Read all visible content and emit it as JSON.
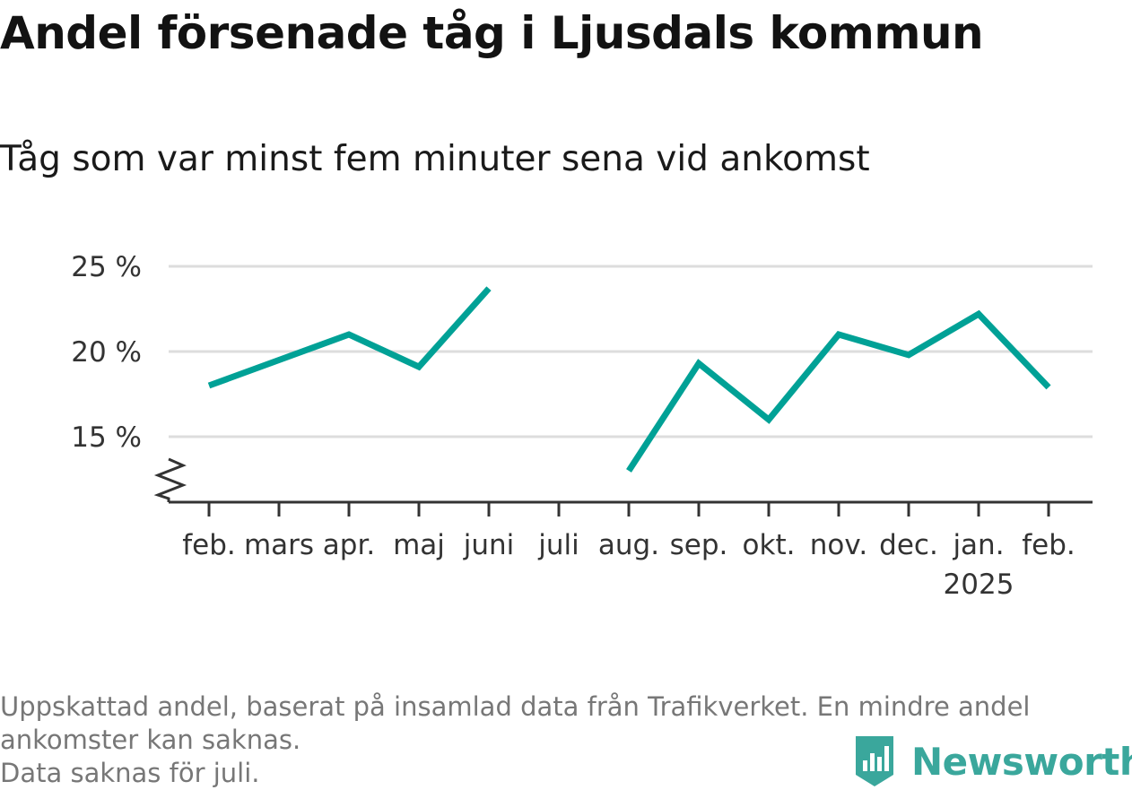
{
  "header": {
    "title": "Andel försenade tåg i Ljusdals kommun",
    "subtitle": "Tåg som var minst fem minuter sena vid ankomst"
  },
  "chart_data": {
    "type": "line",
    "title": "Andel försenade tåg i Ljusdals kommun",
    "subtitle": "Tåg som var minst fem minuter sena vid ankomst",
    "categories": [
      "feb.",
      "mars",
      "apr.",
      "maj",
      "juni",
      "juli",
      "aug.",
      "sep.",
      "okt.",
      "nov.",
      "dec.",
      "jan.",
      "feb."
    ],
    "category_sublabels": [
      "",
      "",
      "",
      "",
      "",
      "",
      "",
      "",
      "",
      "",
      "",
      "2025",
      ""
    ],
    "series": [
      {
        "values": [
          18.0,
          19.5,
          21.0,
          19.1,
          23.7,
          null,
          13.0,
          19.3,
          16.0,
          21.0,
          19.8,
          22.2,
          17.9
        ],
        "color": "#00a196"
      }
    ],
    "ylim": [
      12,
      25
    ],
    "yticks": [
      15,
      20,
      25
    ],
    "ytick_labels": [
      "15 %",
      "20 %",
      "25 %"
    ],
    "y_axis_broken": true,
    "grid": true,
    "xlabel": "",
    "ylabel": ""
  },
  "footnote": {
    "lines": [
      "Uppskattad andel, baserat på insamlad data från Trafikverket. En mindre andel",
      "ankomster kan saknas.",
      "Data saknas för juli."
    ]
  },
  "brand": {
    "name": "Newsworthy",
    "icon": "newsworthy-logo-icon",
    "color": "#3aa79c"
  }
}
